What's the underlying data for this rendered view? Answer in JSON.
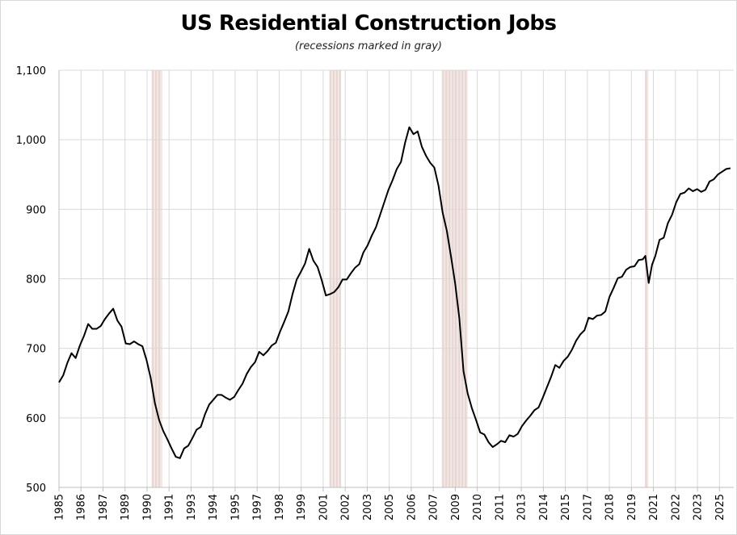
{
  "chart_data": {
    "type": "line",
    "title": "US Residential Construction Jobs",
    "subtitle": "(recessions marked in gray)",
    "xlabel": "",
    "ylabel": "",
    "xlim": [
      1985.0,
      2025.45
    ],
    "ylim": [
      500,
      1100
    ],
    "y_ticks": [
      500,
      600,
      700,
      800,
      900,
      1000,
      1100
    ],
    "y_tick_labels": [
      "500",
      "600",
      "700",
      "800",
      "900",
      "1,000",
      "1,100"
    ],
    "x_tick_labels": [
      "1985",
      "1986",
      "1987",
      "1989",
      "1990",
      "1991",
      "1993",
      "1994",
      "1995",
      "1997",
      "1998",
      "1999",
      "2001",
      "2002",
      "2003",
      "2005",
      "2006",
      "2007",
      "2009",
      "2010",
      "2011",
      "2013",
      "2014",
      "2015",
      "2017",
      "2018",
      "2019",
      "2021",
      "2022",
      "2023",
      "2025"
    ],
    "grid": true,
    "legend": "none",
    "line_color": "#000000",
    "recession_color": "#e8d6d2",
    "recessions": [
      {
        "start": 1990.55,
        "end": 1991.2
      },
      {
        "start": 2001.2,
        "end": 2001.88
      },
      {
        "start": 2007.95,
        "end": 2009.5
      },
      {
        "start": 2020.12,
        "end": 2020.33
      }
    ],
    "series": [
      {
        "points": [
          [
            1985.0,
            651
          ],
          [
            1985.25,
            661
          ],
          [
            1985.5,
            679
          ],
          [
            1985.75,
            693
          ],
          [
            1986.0,
            686
          ],
          [
            1986.25,
            704
          ],
          [
            1986.5,
            718
          ],
          [
            1986.75,
            735
          ],
          [
            1987.0,
            728
          ],
          [
            1987.25,
            728
          ],
          [
            1987.5,
            732
          ],
          [
            1987.75,
            742
          ],
          [
            1988.0,
            750
          ],
          [
            1988.25,
            757
          ],
          [
            1988.5,
            740
          ],
          [
            1988.75,
            731
          ],
          [
            1989.0,
            707
          ],
          [
            1989.25,
            706
          ],
          [
            1989.5,
            710
          ],
          [
            1989.75,
            706
          ],
          [
            1990.0,
            703
          ],
          [
            1990.25,
            683
          ],
          [
            1990.5,
            657
          ],
          [
            1990.75,
            621
          ],
          [
            1991.0,
            597
          ],
          [
            1991.25,
            581
          ],
          [
            1991.5,
            569
          ],
          [
            1991.75,
            556
          ],
          [
            1992.0,
            544
          ],
          [
            1992.25,
            542
          ],
          [
            1992.5,
            556
          ],
          [
            1992.75,
            560
          ],
          [
            1993.0,
            571
          ],
          [
            1993.25,
            583
          ],
          [
            1993.5,
            587
          ],
          [
            1993.75,
            605
          ],
          [
            1994.0,
            619
          ],
          [
            1994.25,
            626
          ],
          [
            1994.5,
            633
          ],
          [
            1994.75,
            633
          ],
          [
            1995.0,
            629
          ],
          [
            1995.25,
            626
          ],
          [
            1995.5,
            630
          ],
          [
            1995.75,
            640
          ],
          [
            1996.0,
            649
          ],
          [
            1996.25,
            663
          ],
          [
            1996.5,
            673
          ],
          [
            1996.75,
            680
          ],
          [
            1997.0,
            695
          ],
          [
            1997.25,
            690
          ],
          [
            1997.5,
            696
          ],
          [
            1997.75,
            704
          ],
          [
            1998.0,
            708
          ],
          [
            1998.25,
            724
          ],
          [
            1998.5,
            738
          ],
          [
            1998.75,
            753
          ],
          [
            1999.0,
            778
          ],
          [
            1999.25,
            799
          ],
          [
            1999.5,
            810
          ],
          [
            1999.75,
            822
          ],
          [
            2000.0,
            843
          ],
          [
            2000.25,
            826
          ],
          [
            2000.5,
            817
          ],
          [
            2000.75,
            798
          ],
          [
            2001.0,
            776
          ],
          [
            2001.25,
            778
          ],
          [
            2001.5,
            781
          ],
          [
            2001.75,
            788
          ],
          [
            2002.0,
            799
          ],
          [
            2002.25,
            799
          ],
          [
            2002.5,
            808
          ],
          [
            2002.75,
            816
          ],
          [
            2003.0,
            821
          ],
          [
            2003.25,
            838
          ],
          [
            2003.5,
            848
          ],
          [
            2003.75,
            862
          ],
          [
            2004.0,
            874
          ],
          [
            2004.25,
            892
          ],
          [
            2004.5,
            910
          ],
          [
            2004.75,
            928
          ],
          [
            2005.0,
            942
          ],
          [
            2005.25,
            958
          ],
          [
            2005.5,
            968
          ],
          [
            2005.75,
            996
          ],
          [
            2006.0,
            1018
          ],
          [
            2006.25,
            1008
          ],
          [
            2006.5,
            1012
          ],
          [
            2006.75,
            990
          ],
          [
            2007.0,
            977
          ],
          [
            2007.25,
            967
          ],
          [
            2007.5,
            960
          ],
          [
            2007.75,
            934
          ],
          [
            2008.0,
            895
          ],
          [
            2008.25,
            869
          ],
          [
            2008.5,
            832
          ],
          [
            2008.75,
            793
          ],
          [
            2009.0,
            743
          ],
          [
            2009.25,
            667
          ],
          [
            2009.5,
            635
          ],
          [
            2009.75,
            614
          ],
          [
            2010.0,
            597
          ],
          [
            2010.25,
            579
          ],
          [
            2010.5,
            576
          ],
          [
            2010.75,
            565
          ],
          [
            2011.0,
            558
          ],
          [
            2011.25,
            562
          ],
          [
            2011.5,
            567
          ],
          [
            2011.75,
            565
          ],
          [
            2012.0,
            575
          ],
          [
            2012.25,
            573
          ],
          [
            2012.5,
            577
          ],
          [
            2012.75,
            588
          ],
          [
            2013.0,
            596
          ],
          [
            2013.25,
            603
          ],
          [
            2013.5,
            611
          ],
          [
            2013.75,
            615
          ],
          [
            2014.0,
            629
          ],
          [
            2014.25,
            644
          ],
          [
            2014.5,
            659
          ],
          [
            2014.75,
            676
          ],
          [
            2015.0,
            672
          ],
          [
            2015.25,
            682
          ],
          [
            2015.5,
            688
          ],
          [
            2015.75,
            698
          ],
          [
            2016.0,
            711
          ],
          [
            2016.25,
            720
          ],
          [
            2016.5,
            726
          ],
          [
            2016.75,
            744
          ],
          [
            2017.0,
            742
          ],
          [
            2017.25,
            747
          ],
          [
            2017.5,
            748
          ],
          [
            2017.75,
            753
          ],
          [
            2018.0,
            774
          ],
          [
            2018.25,
            787
          ],
          [
            2018.5,
            801
          ],
          [
            2018.75,
            803
          ],
          [
            2019.0,
            813
          ],
          [
            2019.25,
            817
          ],
          [
            2019.5,
            818
          ],
          [
            2019.75,
            827
          ],
          [
            2020.0,
            828
          ],
          [
            2020.15,
            833
          ],
          [
            2020.35,
            794
          ],
          [
            2020.55,
            820
          ],
          [
            2020.75,
            833
          ],
          [
            2021.0,
            856
          ],
          [
            2021.25,
            859
          ],
          [
            2021.5,
            880
          ],
          [
            2021.75,
            892
          ],
          [
            2022.0,
            910
          ],
          [
            2022.25,
            922
          ],
          [
            2022.5,
            924
          ],
          [
            2022.75,
            930
          ],
          [
            2023.0,
            926
          ],
          [
            2023.25,
            929
          ],
          [
            2023.5,
            925
          ],
          [
            2023.75,
            928
          ],
          [
            2024.0,
            940
          ],
          [
            2024.25,
            943
          ],
          [
            2024.5,
            950
          ],
          [
            2024.75,
            954
          ],
          [
            2025.0,
            958
          ],
          [
            2025.25,
            959
          ]
        ]
      }
    ]
  }
}
